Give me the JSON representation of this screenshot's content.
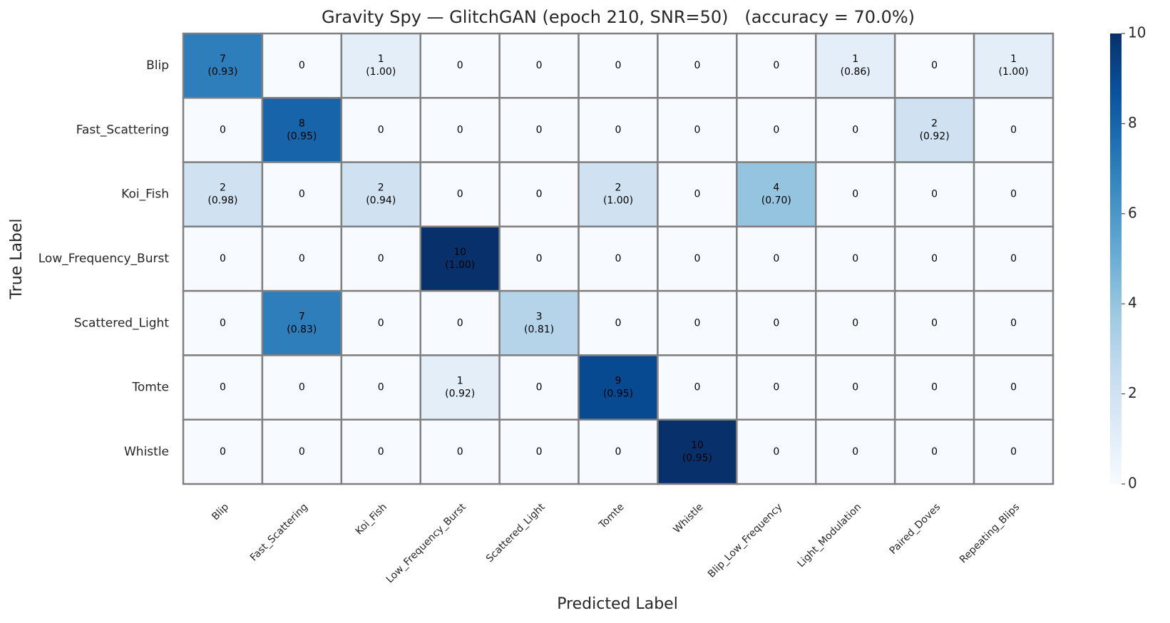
{
  "chart_data": {
    "type": "heatmap",
    "title": "Gravity Spy — GlitchGAN (epoch 210, SNR=50)   (accuracy = 70.0%)",
    "x_label": "Predicted Label",
    "y_label": "True Label",
    "rows": [
      "Blip",
      "Fast_Scattering",
      "Koi_Fish",
      "Low_Frequency_Burst",
      "Scattered_Light",
      "Tomte",
      "Whistle"
    ],
    "columns": [
      "Blip",
      "Fast_Scattering",
      "Koi_Fish",
      "Low_Frequency_Burst",
      "Scattered_Light",
      "Tomte",
      "Whistle",
      "Blip_Low_Frequency",
      "Light_Modulation",
      "Paired_Doves",
      "Repeating_Blips"
    ],
    "values": [
      [
        7,
        0,
        1,
        0,
        0,
        0,
        0,
        0,
        1,
        0,
        1
      ],
      [
        0,
        8,
        0,
        0,
        0,
        0,
        0,
        0,
        0,
        2,
        0
      ],
      [
        2,
        0,
        2,
        0,
        0,
        2,
        0,
        4,
        0,
        0,
        0
      ],
      [
        0,
        0,
        0,
        10,
        0,
        0,
        0,
        0,
        0,
        0,
        0
      ],
      [
        0,
        7,
        0,
        0,
        3,
        0,
        0,
        0,
        0,
        0,
        0
      ],
      [
        0,
        0,
        0,
        1,
        0,
        9,
        0,
        0,
        0,
        0,
        0
      ],
      [
        0,
        0,
        0,
        0,
        0,
        0,
        10,
        0,
        0,
        0,
        0
      ]
    ],
    "confidence": [
      [
        0.93,
        null,
        1.0,
        null,
        null,
        null,
        null,
        null,
        0.86,
        null,
        1.0
      ],
      [
        null,
        0.95,
        null,
        null,
        null,
        null,
        null,
        null,
        null,
        0.92,
        null
      ],
      [
        0.98,
        null,
        0.94,
        null,
        null,
        1.0,
        null,
        0.7,
        null,
        null,
        null
      ],
      [
        null,
        null,
        null,
        1.0,
        null,
        null,
        null,
        null,
        null,
        null,
        null
      ],
      [
        null,
        0.83,
        null,
        null,
        0.81,
        null,
        null,
        null,
        null,
        null,
        null
      ],
      [
        null,
        null,
        null,
        0.92,
        null,
        0.95,
        null,
        null,
        null,
        null,
        null
      ],
      [
        null,
        null,
        null,
        null,
        null,
        null,
        0.95,
        null,
        null,
        null,
        null
      ]
    ],
    "confidence_labels": [
      [
        "(0.93)",
        null,
        "(1.00)",
        null,
        null,
        null,
        null,
        null,
        "(0.86)",
        null,
        "(1.00)"
      ],
      [
        null,
        "(0.95)",
        null,
        null,
        null,
        null,
        null,
        null,
        null,
        "(0.92)",
        null
      ],
      [
        "(0.98)",
        null,
        "(0.94)",
        null,
        null,
        "(1.00)",
        null,
        "(0.70)",
        null,
        null,
        null
      ],
      [
        null,
        null,
        null,
        "(1.00)",
        null,
        null,
        null,
        null,
        null,
        null,
        null
      ],
      [
        null,
        "(0.83)",
        null,
        null,
        "(0.81)",
        null,
        null,
        null,
        null,
        null,
        null
      ],
      [
        null,
        null,
        null,
        "(0.92)",
        null,
        "(0.95)",
        null,
        null,
        null,
        null,
        null
      ],
      [
        null,
        null,
        null,
        null,
        null,
        null,
        "(0.95)",
        null,
        null,
        null,
        null
      ]
    ],
    "colormap": "Blues",
    "clim": [
      0,
      10
    ],
    "cticks": [
      0,
      2,
      4,
      6,
      8,
      10
    ]
  }
}
